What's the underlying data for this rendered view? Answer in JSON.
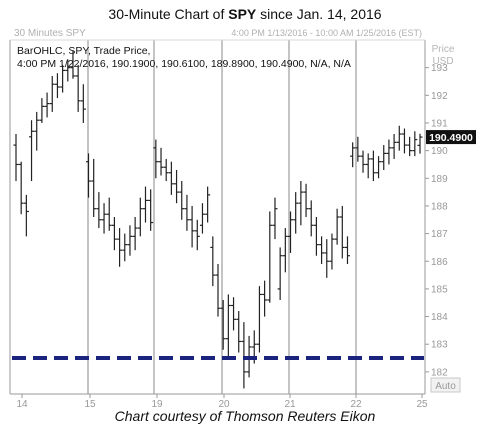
{
  "header": {
    "title_prefix": "30-Minute Chart of ",
    "title_ticker": "SPY",
    "title_suffix": " since Jan. 14, 2016",
    "panel_name": "30 Minutes SPY",
    "range_text": "4:00 PM 1/13/2016 - 10:00 AM 1/25/2016 (EST)",
    "info_line1": "BarOHLC, SPY, Trade Price,",
    "info_line2": "4:00 PM 1/22/2016, 190.1900, 190.6100, 189.8900, 190.4900, N/A, N/A"
  },
  "caption": "Chart courtesy of Thomson Reuters Eikon",
  "y_axis": {
    "title_line1": "Price",
    "title_line2": "USD",
    "auto_label": "Auto"
  },
  "last_price_label": "190.4900",
  "colors": {
    "bars": "#222222",
    "support_line": "#1a237e",
    "last_price_box": "#111111",
    "day_separator": "#8a8a8a"
  },
  "chart_data": {
    "type": "ohlc",
    "title": "30-Minute Chart of SPY since Jan. 14, 2016",
    "xlabel": "",
    "ylabel": "Price USD",
    "ylim": [
      181.2,
      194
    ],
    "y_ticks": [
      182,
      183,
      184,
      185,
      186,
      187,
      188,
      189,
      190,
      191,
      192,
      193
    ],
    "x_tick_labels": [
      "14",
      "15",
      "19",
      "20",
      "21",
      "22",
      "25"
    ],
    "day_separators": [
      "15",
      "19",
      "20",
      "21",
      "22"
    ],
    "grid": false,
    "support_level": 182.5,
    "last_price": 190.49,
    "series": [
      {
        "name": "SPY",
        "bars": [
          [
            190.2,
            190.6,
            188.9,
            189.5
          ],
          [
            189.5,
            189.6,
            187.7,
            188.1
          ],
          [
            188.1,
            188.4,
            186.9,
            187.8
          ],
          [
            190.5,
            191.1,
            188.9,
            190.7
          ],
          [
            190.7,
            191.4,
            190.0,
            191.1
          ],
          [
            191.1,
            191.9,
            191.0,
            191.6
          ],
          [
            191.6,
            192.1,
            191.2,
            191.7
          ],
          [
            191.7,
            192.7,
            191.4,
            192.4
          ],
          [
            192.4,
            192.8,
            191.9,
            192.3
          ],
          [
            192.3,
            193.1,
            192.1,
            192.9
          ],
          [
            192.9,
            193.3,
            192.5,
            193.0
          ],
          [
            193.0,
            193.6,
            192.6,
            192.7
          ],
          [
            192.7,
            193.1,
            191.4,
            191.8
          ],
          [
            191.8,
            192.4,
            191.0,
            191.5
          ],
          [
            189.6,
            189.9,
            188.3,
            188.9
          ],
          [
            188.9,
            189.7,
            187.6,
            187.9
          ],
          [
            187.9,
            188.5,
            187.2,
            187.5
          ],
          [
            187.5,
            188.1,
            187.0,
            187.7
          ],
          [
            187.7,
            188.3,
            187.1,
            187.3
          ],
          [
            187.3,
            187.6,
            186.4,
            186.8
          ],
          [
            186.8,
            187.2,
            185.8,
            186.4
          ],
          [
            186.4,
            187.0,
            186.0,
            186.6
          ],
          [
            186.6,
            187.3,
            186.2,
            186.9
          ],
          [
            186.9,
            187.6,
            186.4,
            187.2
          ],
          [
            187.2,
            188.3,
            186.9,
            187.9
          ],
          [
            187.9,
            188.7,
            187.4,
            188.2
          ],
          [
            188.2,
            188.6,
            187.1,
            187.4
          ],
          [
            190.1,
            190.4,
            189.0,
            189.6
          ],
          [
            189.6,
            190.1,
            189.1,
            189.4
          ],
          [
            189.4,
            189.7,
            188.9,
            189.2
          ],
          [
            189.2,
            189.6,
            188.4,
            188.8
          ],
          [
            188.8,
            189.3,
            188.1,
            188.5
          ],
          [
            188.5,
            188.9,
            187.5,
            187.9
          ],
          [
            187.9,
            188.4,
            187.1,
            187.5
          ],
          [
            187.5,
            188.0,
            186.5,
            187.1
          ],
          [
            187.1,
            187.5,
            186.4,
            186.9
          ],
          [
            187.3,
            188.1,
            187.0,
            187.7
          ],
          [
            187.7,
            188.7,
            187.4,
            188.4
          ],
          [
            186.5,
            186.9,
            185.1,
            185.5
          ],
          [
            185.5,
            185.9,
            184.0,
            184.3
          ],
          [
            184.3,
            184.6,
            182.8,
            183.2
          ],
          [
            183.2,
            184.8,
            182.5,
            184.4
          ],
          [
            184.4,
            184.7,
            183.5,
            183.9
          ],
          [
            183.9,
            184.2,
            182.7,
            183.1
          ],
          [
            183.1,
            183.8,
            181.4,
            182.0
          ],
          [
            182.0,
            183.3,
            181.8,
            182.9
          ],
          [
            182.9,
            183.5,
            182.3,
            183.0
          ],
          [
            183.0,
            185.1,
            182.7,
            184.8
          ],
          [
            184.8,
            185.3,
            184.0,
            184.6
          ],
          [
            184.6,
            187.8,
            184.5,
            187.3
          ],
          [
            187.3,
            188.3,
            186.8,
            187.9
          ],
          [
            185.0,
            186.5,
            184.6,
            186.2
          ],
          [
            186.2,
            187.2,
            185.6,
            186.9
          ],
          [
            186.9,
            187.8,
            186.3,
            187.5
          ],
          [
            187.5,
            188.5,
            187.0,
            188.1
          ],
          [
            188.1,
            188.9,
            187.3,
            188.5
          ],
          [
            188.5,
            188.8,
            187.6,
            187.9
          ],
          [
            187.9,
            188.2,
            186.9,
            187.3
          ],
          [
            187.3,
            187.6,
            186.2,
            186.6
          ],
          [
            186.6,
            186.9,
            185.9,
            186.3
          ],
          [
            186.3,
            186.8,
            185.4,
            186.0
          ],
          [
            186.0,
            187.0,
            185.7,
            186.8
          ],
          [
            186.8,
            187.9,
            186.6,
            187.6
          ],
          [
            187.6,
            188.0,
            186.1,
            186.5
          ],
          [
            186.5,
            186.9,
            185.9,
            186.2
          ],
          [
            189.8,
            190.3,
            189.4,
            190.1
          ],
          [
            190.1,
            190.5,
            189.6,
            189.8
          ],
          [
            189.8,
            190.0,
            189.2,
            189.5
          ],
          [
            189.5,
            189.9,
            189.0,
            189.7
          ],
          [
            189.7,
            190.0,
            188.9,
            189.2
          ],
          [
            189.2,
            189.8,
            189.0,
            189.6
          ],
          [
            189.6,
            190.2,
            189.3,
            189.9
          ],
          [
            189.9,
            190.4,
            189.5,
            190.1
          ],
          [
            190.1,
            190.6,
            189.7,
            190.3
          ],
          [
            190.3,
            190.9,
            190.0,
            190.6
          ],
          [
            190.6,
            190.8,
            189.9,
            190.2
          ],
          [
            190.2,
            190.5,
            189.8,
            190.0
          ],
          [
            190.0,
            190.7,
            189.8,
            190.4
          ],
          [
            190.19,
            190.61,
            189.89,
            190.49
          ]
        ]
      }
    ]
  }
}
